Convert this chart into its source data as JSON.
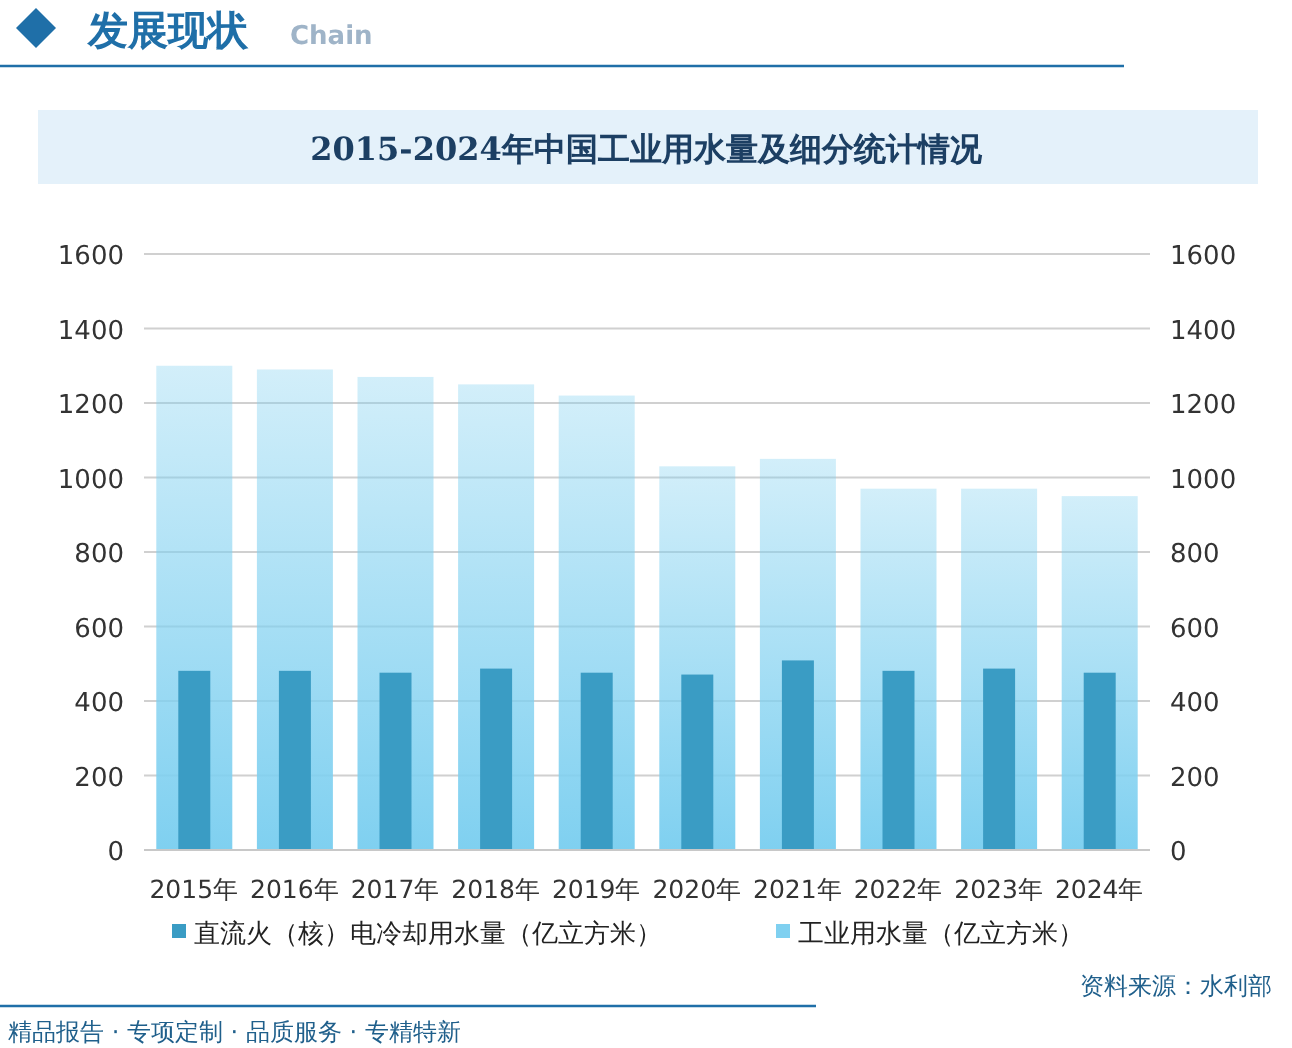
{
  "chart_data": {
    "type": "bar",
    "title": "2015-2024年中国工业用水量及细分统计情况",
    "categories": [
      "2015年",
      "2016年",
      "2017年",
      "2018年",
      "2019年",
      "2020年",
      "2021年",
      "2022年",
      "2023年",
      "2024年"
    ],
    "series": [
      {
        "name": "直流火（核）电冷却用水量（亿立方米）",
        "color": "#3a9cc4",
        "values": [
          481,
          481,
          476,
          487,
          476,
          471,
          509,
          481,
          487,
          476
        ]
      },
      {
        "name": "工业用水量（亿立方米）",
        "color": "#7fd0f0",
        "values": [
          1300,
          1290,
          1270,
          1250,
          1220,
          1030,
          1050,
          970,
          970,
          950
        ]
      }
    ],
    "ylim": [
      0,
      1600
    ],
    "yticks": [
      0,
      200,
      400,
      600,
      800,
      1000,
      1200,
      1400,
      1600
    ],
    "y2lim": [
      0,
      1600
    ],
    "y2ticks": [
      0,
      200,
      400,
      600,
      800,
      1000,
      1200,
      1400,
      1600
    ],
    "grid": "y",
    "legend": "bottom",
    "annotations": [
      "发展现状",
      "Chain",
      "资料来源：水利部",
      "精品报告 · 专项定制 · 品质服务 · 专精特新"
    ]
  }
}
